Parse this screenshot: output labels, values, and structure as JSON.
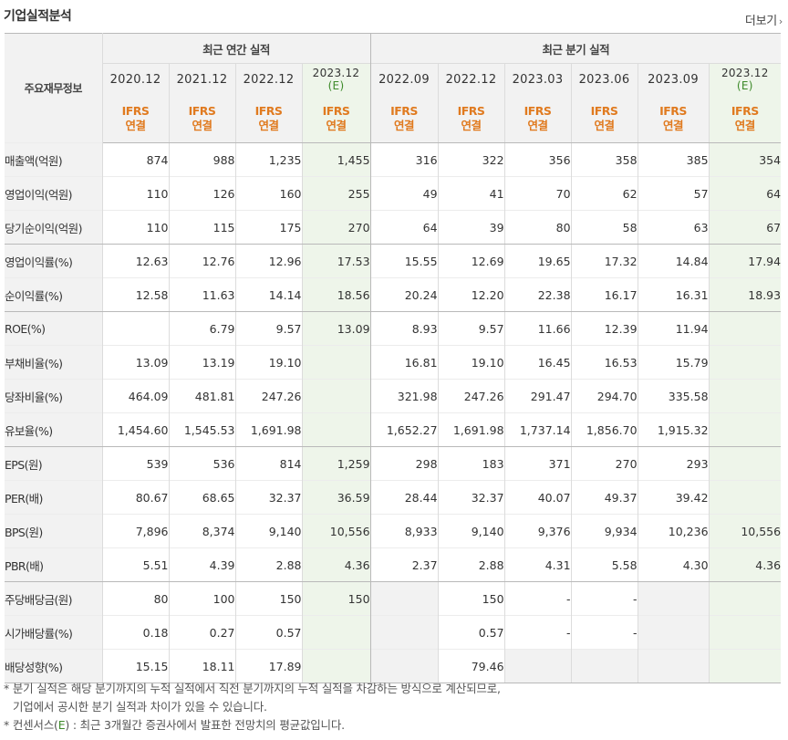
{
  "header": {
    "title": "기업실적분석",
    "more_label": "더보기"
  },
  "table": {
    "corner_label": "주요재무정보",
    "group_annual": "최근 연간 실적",
    "group_quarter": "최근 분기 실적",
    "annual_periods": [
      "2020.12",
      "2021.12",
      "2022.12",
      "2023.12"
    ],
    "quarter_periods": [
      "2022.09",
      "2022.12",
      "2023.03",
      "2023.06",
      "2023.09",
      "2023.12"
    ],
    "estimate_mark": "(E)",
    "basis_line1": "IFRS",
    "basis_line2": "연결",
    "rows": [
      {
        "label": "매출액(억원)",
        "annual": [
          "874",
          "988",
          "1,235",
          "1,455"
        ],
        "quarter": [
          "316",
          "322",
          "356",
          "358",
          "385",
          "354"
        ]
      },
      {
        "label": "영업이익(억원)",
        "annual": [
          "110",
          "126",
          "160",
          "255"
        ],
        "quarter": [
          "49",
          "41",
          "70",
          "62",
          "57",
          "64"
        ]
      },
      {
        "label": "당기순이익(억원)",
        "annual": [
          "110",
          "115",
          "175",
          "270"
        ],
        "quarter": [
          "64",
          "39",
          "80",
          "58",
          "63",
          "67"
        ]
      },
      {
        "label": "영업이익률(%)",
        "annual": [
          "12.63",
          "12.76",
          "12.96",
          "17.53"
        ],
        "quarter": [
          "15.55",
          "12.69",
          "19.65",
          "17.32",
          "14.84",
          "17.94"
        ]
      },
      {
        "label": "순이익률(%)",
        "annual": [
          "12.58",
          "11.63",
          "14.14",
          "18.56"
        ],
        "quarter": [
          "20.24",
          "12.20",
          "22.38",
          "16.17",
          "16.31",
          "18.93"
        ]
      },
      {
        "label": "ROE(%)",
        "annual": [
          "",
          "6.79",
          "9.57",
          "13.09"
        ],
        "quarter": [
          "8.93",
          "9.57",
          "11.66",
          "12.39",
          "11.94",
          ""
        ]
      },
      {
        "label": "부채비율(%)",
        "annual": [
          "13.09",
          "13.19",
          "19.10",
          ""
        ],
        "quarter": [
          "16.81",
          "19.10",
          "16.45",
          "16.53",
          "15.79",
          ""
        ]
      },
      {
        "label": "당좌비율(%)",
        "annual": [
          "464.09",
          "481.81",
          "247.26",
          ""
        ],
        "quarter": [
          "321.98",
          "247.26",
          "291.47",
          "294.70",
          "335.58",
          ""
        ]
      },
      {
        "label": "유보율(%)",
        "annual": [
          "1,454.60",
          "1,545.53",
          "1,691.98",
          ""
        ],
        "quarter": [
          "1,652.27",
          "1,691.98",
          "1,737.14",
          "1,856.70",
          "1,915.32",
          ""
        ]
      },
      {
        "label": "EPS(원)",
        "annual": [
          "539",
          "536",
          "814",
          "1,259"
        ],
        "quarter": [
          "298",
          "183",
          "371",
          "270",
          "293",
          ""
        ]
      },
      {
        "label": "PER(배)",
        "annual": [
          "80.67",
          "68.65",
          "32.37",
          "36.59"
        ],
        "quarter": [
          "28.44",
          "32.37",
          "40.07",
          "49.37",
          "39.42",
          ""
        ]
      },
      {
        "label": "BPS(원)",
        "annual": [
          "7,896",
          "8,374",
          "9,140",
          "10,556"
        ],
        "quarter": [
          "8,933",
          "9,140",
          "9,376",
          "9,934",
          "10,236",
          "10,556"
        ]
      },
      {
        "label": "PBR(배)",
        "annual": [
          "5.51",
          "4.39",
          "2.88",
          "4.36"
        ],
        "quarter": [
          "2.37",
          "2.88",
          "4.31",
          "5.58",
          "4.30",
          "4.36"
        ]
      },
      {
        "label": "주당배당금(원)",
        "annual": [
          "80",
          "100",
          "150",
          "150"
        ],
        "quarter": [
          "",
          "150",
          "-",
          "-",
          "",
          ""
        ]
      },
      {
        "label": "시가배당률(%)",
        "annual": [
          "0.18",
          "0.27",
          "0.57",
          ""
        ],
        "quarter": [
          "",
          "0.57",
          "-",
          "-",
          "",
          ""
        ]
      },
      {
        "label": "배당성향(%)",
        "annual": [
          "15.15",
          "18.11",
          "17.89",
          ""
        ],
        "quarter": [
          "",
          "79.46",
          "",
          "",
          "",
          ""
        ]
      }
    ]
  },
  "footer": {
    "note1_line1": "* 분기 실적은 해당 분기까지의 누적 실적에서 직전 분기까지의 누적 실적을 차감하는 방식으로 계산되므로,",
    "note1_line2": "기업에서 공시한 분기 실적과 차이가 있을 수 있습니다.",
    "note2_prefix": "* 컨센서스(",
    "note2_mark": "E",
    "note2_suffix": ") : 최근 3개월간 증권사에서 발표한 전망치의 평균값입니다."
  }
}
